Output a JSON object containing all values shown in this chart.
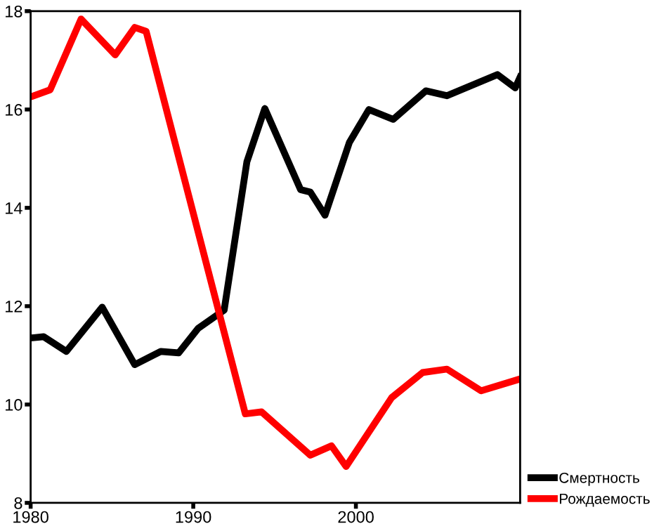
{
  "chart_data": {
    "type": "line",
    "xlim": [
      1980,
      2010.1
    ],
    "xticks": [
      1980,
      1990,
      2000
    ],
    "ylim": [
      8,
      18
    ],
    "yticks": [
      8,
      10,
      12,
      14,
      16,
      18
    ],
    "grid": false,
    "legend": "bottom right",
    "marker": "none",
    "line_style": "solid",
    "series": [
      {
        "name": "Смертность",
        "color": "#000000",
        "x": [
          1980.2,
          1980.8,
          1982.2,
          1984.4,
          1986.4,
          1988.0,
          1989.1,
          1990.3,
          1991.9,
          1993.3,
          1994.4,
          1996.6,
          1997.2,
          1998.1,
          1999.6,
          2000.8,
          2002.3,
          2004.3,
          2005.6,
          2008.7,
          2009.8,
          2010.1
        ],
        "values": [
          11.36,
          11.38,
          11.08,
          11.98,
          10.81,
          11.08,
          11.05,
          11.55,
          11.92,
          14.94,
          16.02,
          14.37,
          14.32,
          13.85,
          15.33,
          16.0,
          15.8,
          16.38,
          16.28,
          16.71,
          16.44,
          16.66
        ]
      },
      {
        "name": "Рождаемость",
        "color": "#ff0000",
        "x": [
          1980.2,
          1981.2,
          1983.1,
          1985.2,
          1986.4,
          1987.1,
          1993.2,
          1994.2,
          1997.2,
          1998.5,
          1999.4,
          2002.2,
          2004.1,
          2005.6,
          2007.7,
          2009.9
        ],
        "values": [
          16.28,
          16.4,
          17.84,
          17.11,
          17.67,
          17.59,
          9.81,
          9.85,
          8.97,
          9.16,
          8.74,
          10.14,
          10.65,
          10.72,
          10.28,
          10.5
        ]
      }
    ]
  }
}
